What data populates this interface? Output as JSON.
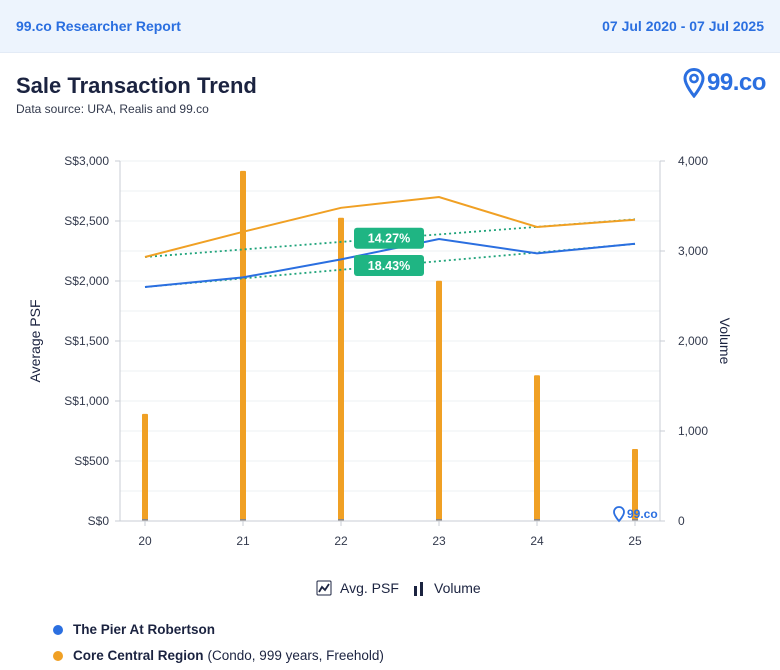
{
  "header": {
    "brand": "99.co Researcher Report",
    "date_range": "07 Jul 2020 - 07 Jul 2025"
  },
  "title": "Sale Transaction Trend",
  "source": "Data source: URA, Realis and 99.co",
  "logo": {
    "text": "99.co"
  },
  "watermark": {
    "text": "99.co"
  },
  "colors": {
    "pier": "#2b6fe0",
    "ccr": "#f0a024",
    "trend": "#1fa37a",
    "badge": "#1fb583"
  },
  "chart_data": {
    "type": "bar+line",
    "x": [
      "20",
      "21",
      "22",
      "23",
      "24",
      "25"
    ],
    "y_left": {
      "label": "Average PSF",
      "ticks": [
        "S$0",
        "S$500",
        "S$1,000",
        "S$1,500",
        "S$2,000",
        "S$2,500",
        "S$3,000"
      ],
      "range": [
        0,
        3000
      ]
    },
    "y_right": {
      "label": "Volume",
      "ticks": [
        "0",
        "1,000",
        "2,000",
        "3,000",
        "4,000"
      ],
      "range": [
        0,
        4000
      ]
    },
    "bars": {
      "name": "Volume",
      "values": [
        1190,
        3890,
        3370,
        2670,
        1620,
        800
      ]
    },
    "series": [
      {
        "name": "The Pier At Robertson",
        "values": [
          1950,
          2030,
          2180,
          2350,
          2230,
          2310
        ]
      },
      {
        "name": "Core Central Region",
        "values": [
          2200,
          2410,
          2610,
          2700,
          2450,
          2510
        ]
      }
    ],
    "trends": [
      {
        "series": "Core Central Region",
        "label": "14.27%",
        "start": 2200,
        "end": 2514
      },
      {
        "series": "The Pier At Robertson",
        "label": "18.43%",
        "start": 1950,
        "end": 2309
      }
    ],
    "toggles": [
      {
        "label": "Avg. PSF"
      },
      {
        "label": "Volume"
      }
    ]
  },
  "legend": [
    {
      "name": "The Pier At Robertson",
      "detail": ""
    },
    {
      "name": "Core Central Region",
      "detail": "(Condo, 999 years, Freehold)"
    }
  ]
}
